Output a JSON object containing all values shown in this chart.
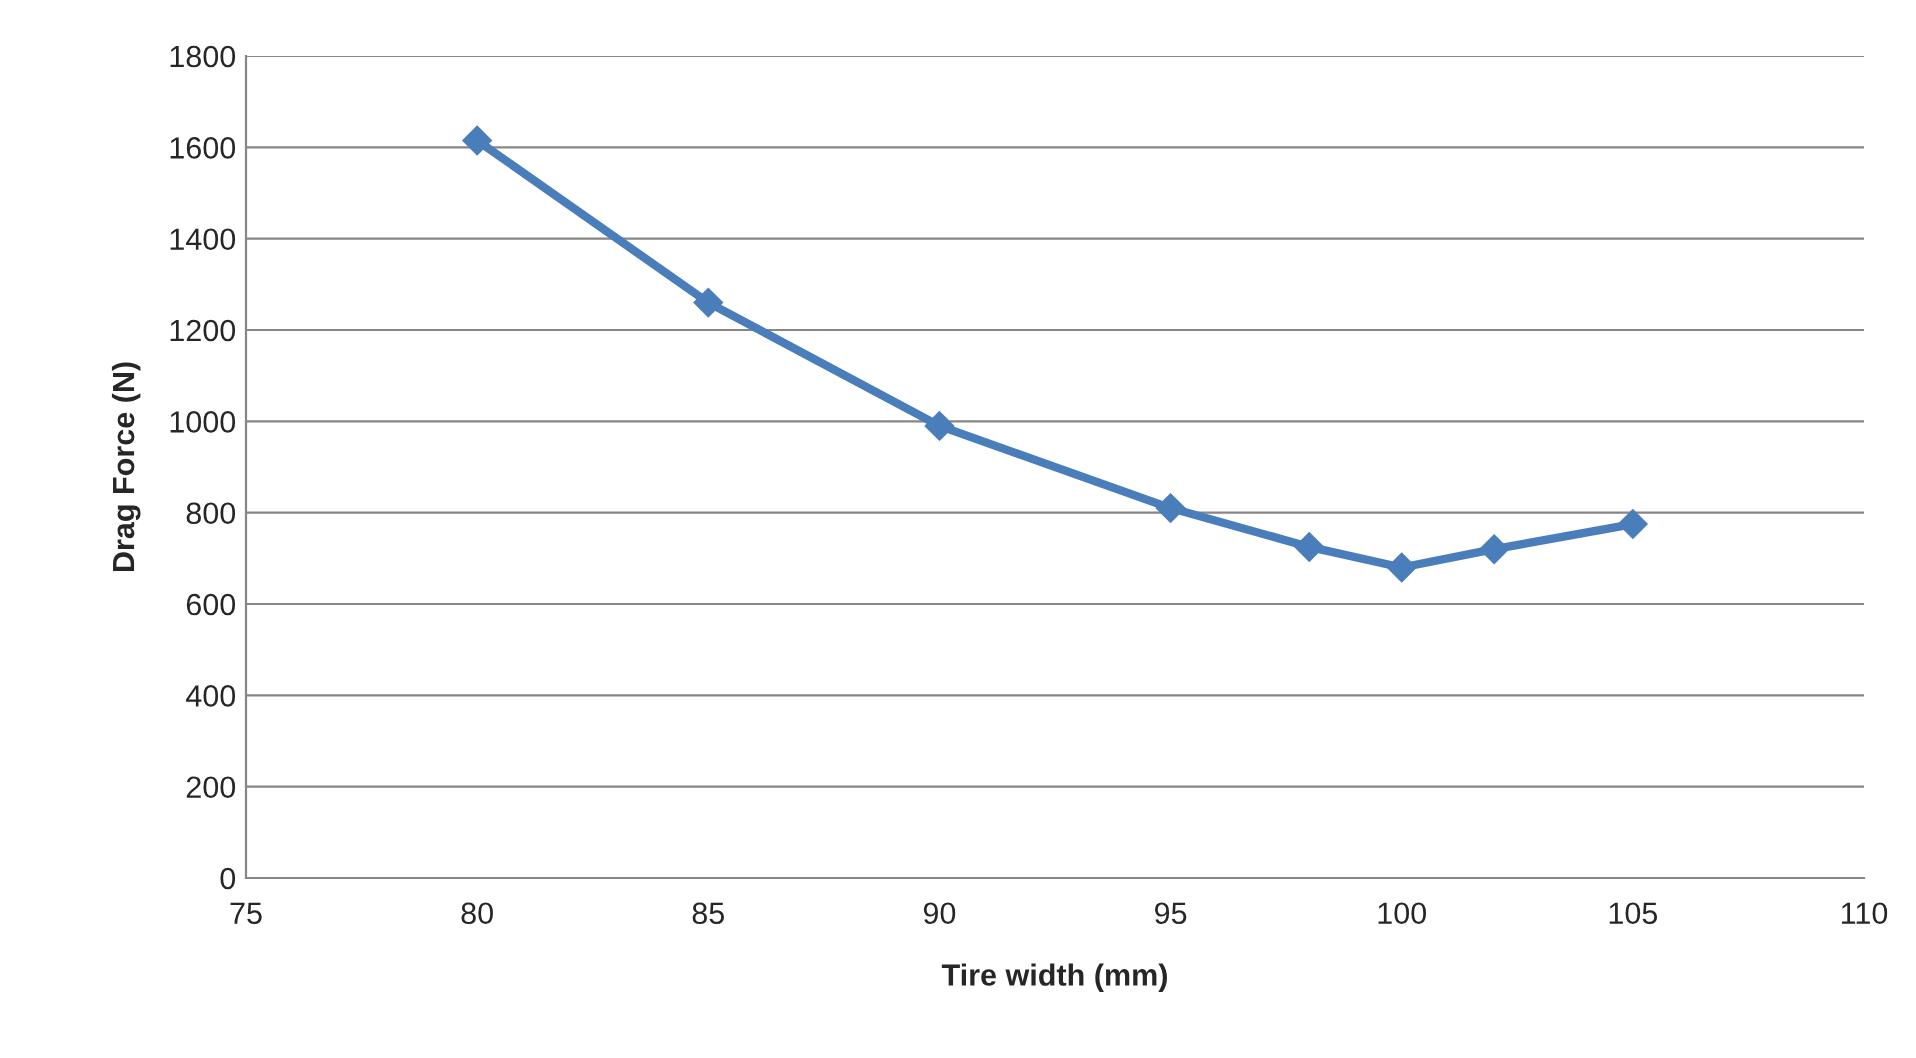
{
  "chart_data": {
    "type": "line",
    "xlabel": "Tire width (mm)",
    "ylabel": "Drag Force (N)",
    "x": [
      80,
      85,
      90,
      95,
      98,
      100,
      102,
      105
    ],
    "series": [
      {
        "color": "#4a7ebb",
        "values": [
          1615,
          1260,
          990,
          810,
          725,
          680,
          720,
          775
        ]
      }
    ],
    "xlim": [
      75,
      110
    ],
    "xticks": [
      75,
      80,
      85,
      90,
      95,
      100,
      105,
      110
    ],
    "ylim": [
      0,
      1800
    ],
    "yticks": [
      0,
      200,
      400,
      600,
      800,
      1000,
      1200,
      1400,
      1600,
      1800
    ],
    "grid": "y",
    "marker": "diamond",
    "line_style": "solid"
  }
}
